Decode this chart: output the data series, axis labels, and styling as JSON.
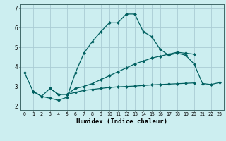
{
  "xlabel": "Humidex (Indice chaleur)",
  "x_values": [
    0,
    1,
    2,
    3,
    4,
    5,
    6,
    7,
    8,
    9,
    10,
    11,
    12,
    13,
    14,
    15,
    16,
    17,
    18,
    19,
    20,
    21,
    22,
    23
  ],
  "line_main_y": [
    3.7,
    2.75,
    2.5,
    2.4,
    2.3,
    2.45,
    3.7,
    4.7,
    5.3,
    5.8,
    6.25,
    6.25,
    6.7,
    6.7,
    5.8,
    5.55,
    4.9,
    4.6,
    4.7,
    4.6,
    4.15,
    3.15,
    3.1,
    3.2
  ],
  "line_upper_y": [
    null,
    2.75,
    2.5,
    2.9,
    2.6,
    2.6,
    2.9,
    3.0,
    3.15,
    3.35,
    3.55,
    3.75,
    3.95,
    4.15,
    4.3,
    4.45,
    4.55,
    4.65,
    4.75,
    4.7,
    4.65,
    null,
    null,
    null
  ],
  "line_lower_y": [
    null,
    null,
    null,
    2.9,
    2.6,
    2.6,
    2.7,
    2.8,
    2.85,
    2.9,
    2.95,
    2.98,
    3.0,
    3.02,
    3.05,
    3.08,
    3.1,
    3.12,
    3.14,
    3.16,
    3.18,
    null,
    null,
    null
  ],
  "line_color": "#006060",
  "bg_color": "#cceef0",
  "grid_color": "#aaccd4",
  "ylim": [
    1.8,
    7.2
  ],
  "xlim": [
    -0.5,
    23.5
  ]
}
